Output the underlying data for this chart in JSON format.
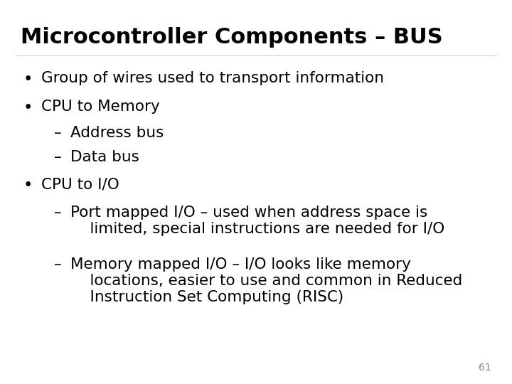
{
  "title": "Microcontroller Components – BUS",
  "background_color": "#ffffff",
  "title_color": "#000000",
  "text_color": "#000000",
  "title_fontsize": 22,
  "body_fontsize": 15.5,
  "page_number": "61",
  "lines": [
    {
      "type": "bullet",
      "indent": 0,
      "text": "Group of wires used to transport information"
    },
    {
      "type": "bullet",
      "indent": 0,
      "text": "CPU to Memory"
    },
    {
      "type": "dash",
      "indent": 1,
      "text": "Address bus"
    },
    {
      "type": "dash",
      "indent": 1,
      "text": "Data bus"
    },
    {
      "type": "bullet",
      "indent": 0,
      "text": "CPU to I/O"
    },
    {
      "type": "dash",
      "indent": 1,
      "text": "Port mapped I/O – used when address space is\n    limited, special instructions are needed for I/O"
    },
    {
      "type": "dash",
      "indent": 1,
      "text": "Memory mapped I/O – I/O looks like memory\n    locations, easier to use and common in Reduced\n    Instruction Set Computing (RISC)"
    }
  ]
}
